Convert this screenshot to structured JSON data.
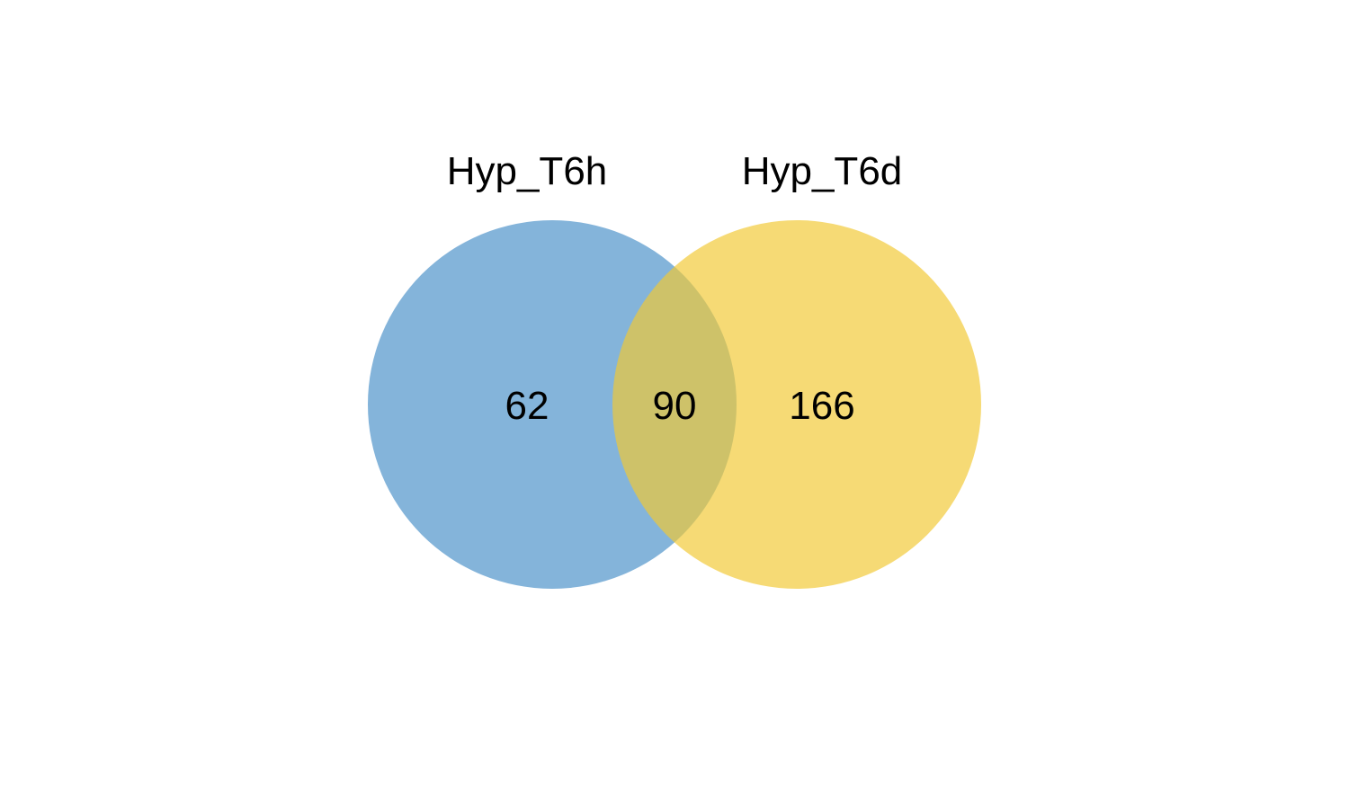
{
  "diagram": {
    "type": "venn",
    "sets": [
      {
        "name": "Hyp_T6h",
        "color": "#4A90C8",
        "only_count": "62"
      },
      {
        "name": "Hyp_T6d",
        "color": "#F2C834",
        "only_count": "166"
      }
    ],
    "intersection_count": "90",
    "fill_opacity": 0.68
  }
}
